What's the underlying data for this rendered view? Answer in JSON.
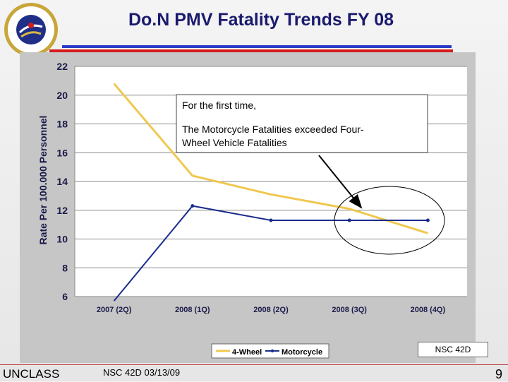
{
  "header": {
    "title": "Do.N PMV Fatality Trends FY 08"
  },
  "logo": {
    "text": "NAVAL SAFETY CENTER"
  },
  "footer": {
    "classification": "UNCLASS",
    "source": "NSC 42D 03/13/09",
    "page_number": "9"
  },
  "box_label": "NSC 42D",
  "chart_data": {
    "type": "line",
    "categories": [
      "2007 (2Q)",
      "2008 (1Q)",
      "2008 (2Q)",
      "2008 (3Q)",
      "2008 (4Q)"
    ],
    "series": [
      {
        "name": "4-Wheel",
        "values": [
          20.8,
          14.4,
          13.1,
          12.1,
          10.4
        ],
        "color": "#f0c850"
      },
      {
        "name": "Motorcycle",
        "values": [
          5.7,
          12.3,
          11.3,
          11.3,
          11.3
        ],
        "color": "#1a2c8c"
      }
    ],
    "ylabel": "Rate Per 100.000 Personnel",
    "ylim": [
      6,
      22
    ],
    "yticks": [
      6,
      8,
      10,
      12,
      14,
      16,
      18,
      20,
      22
    ],
    "grid": true,
    "legend_position": "bottom",
    "annotation": {
      "line1": "For the first time,",
      "line2a": "The Motorcycle Fatalities exceeded Four-",
      "line2b": "Wheel Vehicle Fatalities"
    }
  }
}
